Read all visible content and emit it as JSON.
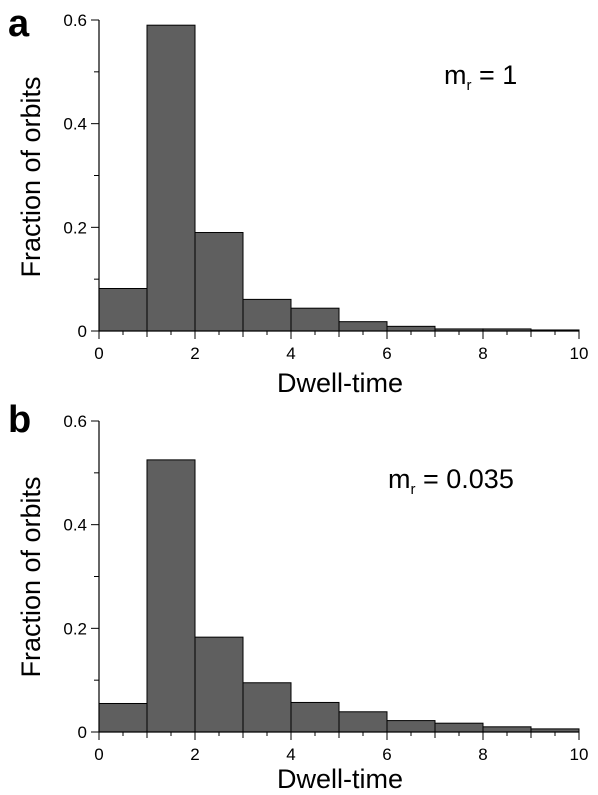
{
  "chart_data": [
    {
      "type": "bar",
      "panel_label": "a",
      "annotation": {
        "symbol": "m",
        "subscript": "r",
        "text": " = 1"
      },
      "xlabel": "Dwell-time",
      "ylabel": "Fraction of orbits",
      "xlim": [
        0,
        10
      ],
      "ylim": [
        0,
        0.6
      ],
      "xticks": [
        0,
        2,
        4,
        6,
        8,
        10
      ],
      "yticks": [
        0,
        0.2,
        0.4,
        0.6
      ],
      "xtick_labels": [
        "0",
        "2",
        "4",
        "6",
        "8",
        "10"
      ],
      "ytick_labels": [
        "0",
        "0.2",
        "0.4",
        "0.6"
      ],
      "bin_edges": [
        0,
        1,
        2,
        3,
        4,
        5,
        6,
        7,
        8,
        9,
        10
      ],
      "values": [
        0.082,
        0.59,
        0.19,
        0.061,
        0.044,
        0.018,
        0.009,
        0.004,
        0.004,
        0.002
      ],
      "bar_color": "#5f5f5f"
    },
    {
      "type": "bar",
      "panel_label": "b",
      "annotation": {
        "symbol": "m",
        "subscript": "r",
        "text": " = 0.035"
      },
      "xlabel": "Dwell-time",
      "ylabel": "Fraction of orbits",
      "xlim": [
        0,
        10
      ],
      "ylim": [
        0,
        0.6
      ],
      "xticks": [
        0,
        2,
        4,
        6,
        8,
        10
      ],
      "yticks": [
        0,
        0.2,
        0.4,
        0.6
      ],
      "xtick_labels": [
        "0",
        "2",
        "4",
        "6",
        "8",
        "10"
      ],
      "ytick_labels": [
        "0",
        "0.2",
        "0.4",
        "0.6"
      ],
      "bin_edges": [
        0,
        1,
        2,
        3,
        4,
        5,
        6,
        7,
        8,
        9,
        10
      ],
      "values": [
        0.055,
        0.525,
        0.183,
        0.095,
        0.057,
        0.039,
        0.022,
        0.017,
        0.01,
        0.006
      ],
      "bar_color": "#5f5f5f"
    }
  ]
}
